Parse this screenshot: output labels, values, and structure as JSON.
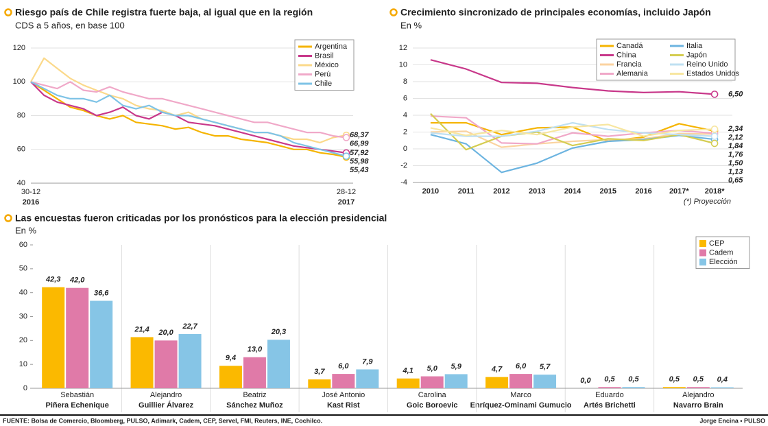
{
  "chart_data": [
    {
      "type": "line",
      "title": "Riesgo país de Chile registra fuerte baja, al igual que en la región",
      "subtitle": "CDS a 5 años, en base 100",
      "categories": [
        "30-12",
        null,
        null,
        null,
        null,
        null,
        null,
        null,
        null,
        null,
        null,
        null,
        null,
        null,
        null,
        null,
        null,
        null,
        null,
        null,
        null,
        null,
        null,
        null,
        "28-12"
      ],
      "category_sublabels": [
        "2016",
        null,
        null,
        null,
        null,
        null,
        null,
        null,
        null,
        null,
        null,
        null,
        null,
        null,
        null,
        null,
        null,
        null,
        null,
        null,
        null,
        null,
        null,
        null,
        "2017"
      ],
      "ylim": [
        40,
        120
      ],
      "yticks": [
        40,
        60,
        80,
        100,
        120
      ],
      "grid": true,
      "legend_position": "top-right",
      "series": [
        {
          "name": "Argentina",
          "color": "#f5b400",
          "values": [
            100,
            95,
            90,
            85,
            83,
            80,
            78,
            80,
            76,
            75,
            74,
            72,
            73,
            70,
            68,
            68,
            66,
            65,
            64,
            62,
            60,
            60,
            58,
            57,
            55.43
          ],
          "value_labels": [
            null,
            null,
            null,
            null,
            null,
            null,
            null,
            null,
            null,
            null,
            null,
            null,
            null,
            null,
            null,
            null,
            null,
            null,
            null,
            null,
            null,
            null,
            null,
            null,
            "55,43"
          ]
        },
        {
          "name": "Brasil",
          "color": "#c8388a",
          "values": [
            100,
            92,
            88,
            86,
            84,
            80,
            82,
            85,
            80,
            78,
            82,
            80,
            76,
            75,
            74,
            72,
            70,
            68,
            66,
            64,
            62,
            61,
            60,
            59,
            57.92
          ],
          "value_labels": [
            null,
            null,
            null,
            null,
            null,
            null,
            null,
            null,
            null,
            null,
            null,
            null,
            null,
            null,
            null,
            null,
            null,
            null,
            null,
            null,
            null,
            null,
            null,
            null,
            "57,92"
          ]
        },
        {
          "name": "México",
          "color": "#fbd98a",
          "values": [
            100,
            114,
            108,
            102,
            98,
            95,
            92,
            90,
            86,
            84,
            83,
            80,
            82,
            78,
            76,
            74,
            72,
            70,
            70,
            68,
            66,
            66,
            64,
            67,
            68.37
          ],
          "value_labels": [
            null,
            null,
            null,
            null,
            null,
            null,
            null,
            null,
            null,
            null,
            null,
            null,
            null,
            null,
            null,
            null,
            null,
            null,
            null,
            null,
            null,
            null,
            null,
            null,
            "68,37"
          ]
        },
        {
          "name": "Perú",
          "color": "#f0a8c8",
          "values": [
            100,
            98,
            96,
            100,
            95,
            94,
            97,
            94,
            92,
            90,
            90,
            88,
            86,
            84,
            82,
            80,
            78,
            76,
            76,
            74,
            72,
            70,
            70,
            68,
            66.99
          ],
          "value_labels": [
            null,
            null,
            null,
            null,
            null,
            null,
            null,
            null,
            null,
            null,
            null,
            null,
            null,
            null,
            null,
            null,
            null,
            null,
            null,
            null,
            null,
            null,
            null,
            null,
            "66,99"
          ]
        },
        {
          "name": "Chile",
          "color": "#7ec3e6",
          "values": [
            100,
            96,
            92,
            90,
            90,
            88,
            92,
            86,
            84,
            86,
            82,
            80,
            80,
            78,
            76,
            74,
            72,
            70,
            70,
            68,
            64,
            62,
            60,
            58,
            55.98
          ],
          "value_labels": [
            null,
            null,
            null,
            null,
            null,
            null,
            null,
            null,
            null,
            null,
            null,
            null,
            null,
            null,
            null,
            null,
            null,
            null,
            null,
            null,
            null,
            null,
            null,
            null,
            "55,98"
          ]
        }
      ]
    },
    {
      "type": "line",
      "title": "Crecimiento sincronizado de principales economías, incluido Japón",
      "subtitle": "En %",
      "note": "(*) Proyección",
      "categories": [
        "2010",
        "2011",
        "2012",
        "2013",
        "2014",
        "2015",
        "2016",
        "2017*",
        "2018*"
      ],
      "ylim": [
        -4,
        12
      ],
      "yticks": [
        -4,
        -2,
        0,
        2,
        4,
        6,
        8,
        10,
        12
      ],
      "grid": true,
      "legend_position": "top-right",
      "series": [
        {
          "name": "Canadá",
          "color": "#f5b400",
          "values": [
            3.1,
            3.1,
            1.7,
            2.5,
            2.6,
            0.9,
            1.4,
            3.0,
            2.12
          ],
          "value_labels": [
            null,
            null,
            null,
            null,
            null,
            null,
            null,
            null,
            "2,12"
          ]
        },
        {
          "name": "China",
          "color": "#c8388a",
          "values": [
            10.6,
            9.5,
            7.9,
            7.8,
            7.3,
            6.9,
            6.7,
            6.8,
            6.5
          ],
          "value_labels": [
            null,
            null,
            null,
            null,
            null,
            null,
            null,
            null,
            "6,50"
          ]
        },
        {
          "name": "Francia",
          "color": "#fbd3a0",
          "values": [
            2.0,
            2.1,
            0.2,
            0.6,
            0.9,
            1.1,
            1.2,
            1.8,
            1.76
          ],
          "value_labels": [
            null,
            null,
            null,
            null,
            null,
            null,
            null,
            null,
            "1,76"
          ]
        },
        {
          "name": "Alemania",
          "color": "#f0a8c8",
          "values": [
            3.9,
            3.7,
            0.7,
            0.6,
            1.9,
            1.5,
            1.9,
            2.2,
            1.84
          ],
          "value_labels": [
            null,
            null,
            null,
            null,
            null,
            null,
            null,
            null,
            "1,84"
          ]
        },
        {
          "name": "Italia",
          "color": "#6cb4e0",
          "values": [
            1.7,
            0.6,
            -2.8,
            -1.7,
            0.1,
            0.9,
            1.1,
            1.6,
            1.13
          ],
          "value_labels": [
            null,
            null,
            null,
            null,
            null,
            null,
            null,
            null,
            "1,13"
          ]
        },
        {
          "name": "Japón",
          "color": "#d4cc50",
          "values": [
            4.2,
            -0.1,
            1.5,
            2.0,
            0.4,
            1.2,
            1.0,
            1.7,
            0.65
          ],
          "value_labels": [
            null,
            null,
            null,
            null,
            null,
            null,
            null,
            null,
            "0,65"
          ]
        },
        {
          "name": "Reino Unido",
          "color": "#bfe0f2",
          "values": [
            1.9,
            1.5,
            1.5,
            2.1,
            3.1,
            2.3,
            1.9,
            1.7,
            1.5
          ],
          "value_labels": [
            null,
            null,
            null,
            null,
            null,
            null,
            null,
            null,
            "1,50"
          ]
        },
        {
          "name": "Estados Unidos",
          "color": "#f7e6a0",
          "values": [
            2.5,
            1.6,
            2.2,
            1.7,
            2.6,
            2.9,
            1.5,
            2.2,
            2.34
          ],
          "value_labels": [
            null,
            null,
            null,
            null,
            null,
            null,
            null,
            null,
            "2,34"
          ]
        }
      ]
    },
    {
      "type": "bar",
      "title": "Las encuestas fueron criticadas por los pronósticos para la elección presidencial",
      "subtitle": "En %",
      "categories": [
        "Sebastián",
        "Alejandro",
        "Beatriz",
        "José Antonio",
        "Carolina",
        "Marco",
        "Eduardo",
        "Alejandro"
      ],
      "category_sublabels": [
        "Piñera Echenique",
        "Guillier Álvarez",
        "Sánchez Muñoz",
        "Kast Rist",
        "Goic Boroevic",
        "Enríquez-Ominami Gumucio",
        "Artés Brichetti",
        "Navarro Brain"
      ],
      "ylim": [
        0,
        60
      ],
      "yticks": [
        0,
        10,
        20,
        30,
        40,
        50,
        60
      ],
      "grid": false,
      "legend_position": "top-right",
      "series": [
        {
          "name": "CEP",
          "color": "#fbb900",
          "values": [
            42.3,
            21.4,
            9.4,
            3.7,
            4.1,
            4.7,
            0.0,
            0.5
          ],
          "value_labels": [
            "42,3",
            "21,4",
            "9,4",
            "3,7",
            "4,1",
            "4,7",
            "0,0",
            "0,5"
          ]
        },
        {
          "name": "Cadem",
          "color": "#e07aa8",
          "values": [
            42.0,
            20.0,
            13.0,
            6.0,
            5.0,
            6.0,
            0.5,
            0.5
          ],
          "value_labels": [
            "42,0",
            "20,0",
            "13,0",
            "6,0",
            "5,0",
            "6,0",
            "0,5",
            "0,5"
          ]
        },
        {
          "name": "Elección",
          "color": "#86c5e6",
          "values": [
            36.6,
            22.7,
            20.3,
            7.9,
            5.9,
            5.7,
            0.5,
            0.4
          ],
          "value_labels": [
            "36,6",
            "22,7",
            "20,3",
            "7,9",
            "5,9",
            "5,7",
            "0,5",
            "0,4"
          ]
        }
      ]
    }
  ],
  "footer": {
    "source": "FUENTE: Bolsa de Comercio, Bloomberg, PULSO, Adimark, Cadem, CEP, Servel, FMI, Reuters, INE, Cochilco.",
    "credit": "Jorge Encina • PULSO"
  }
}
